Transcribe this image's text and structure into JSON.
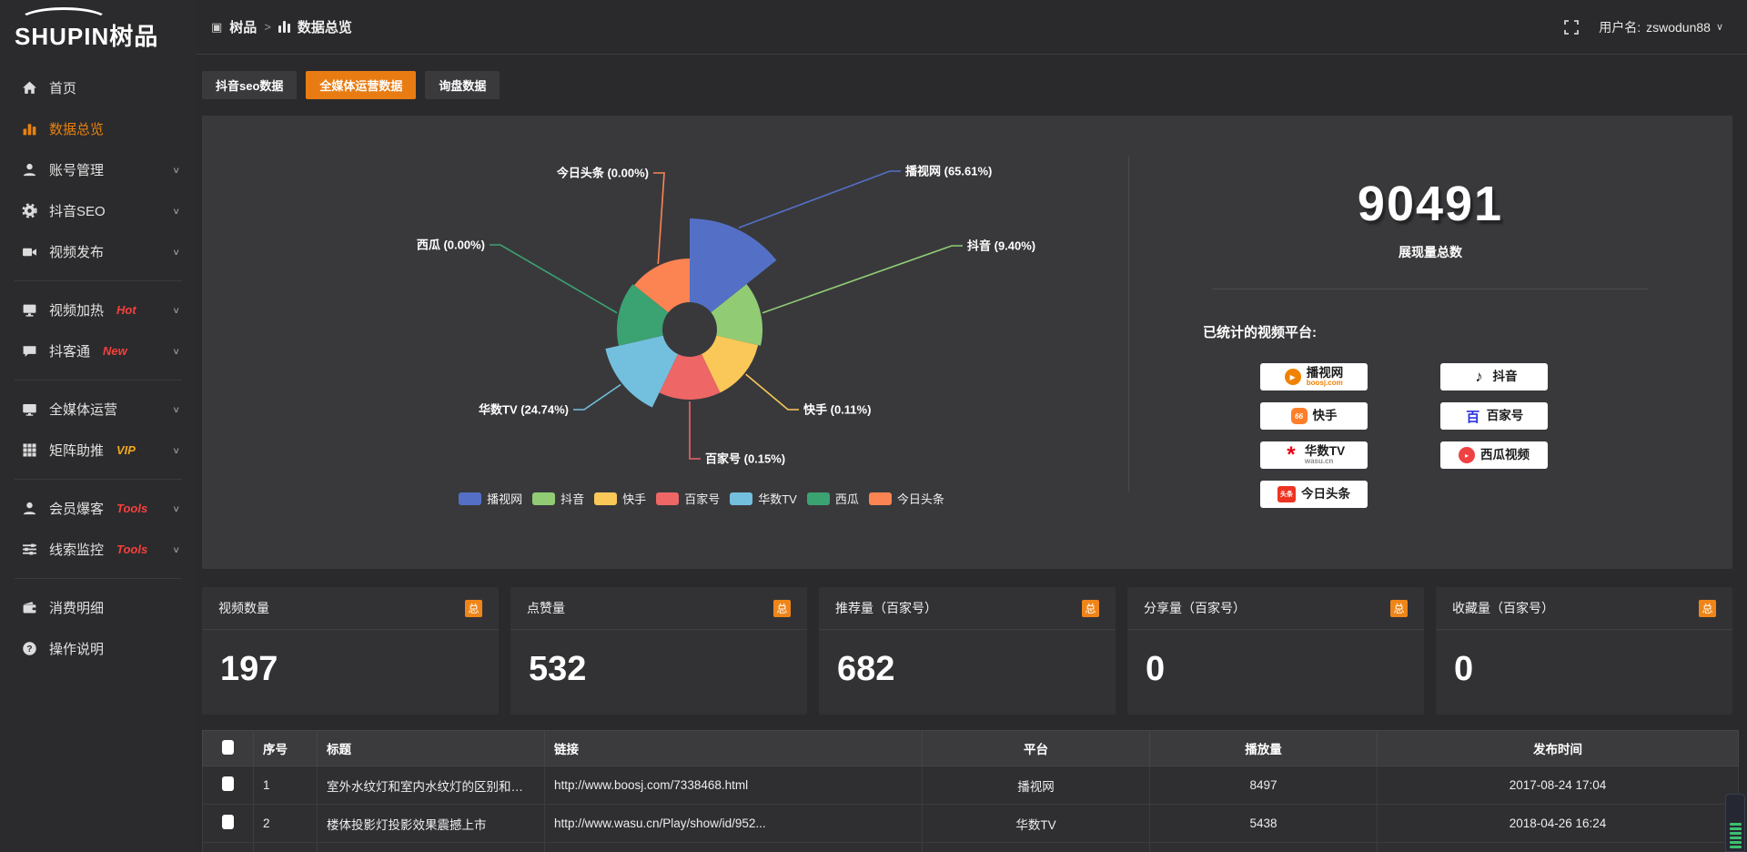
{
  "logo": {
    "en": "SHUPIN",
    "cn": "树品"
  },
  "topbar": {
    "breadcrumb": {
      "root": "树品",
      "separator": ">",
      "current": "数据总览"
    },
    "user_prefix": "用户名:",
    "user_name": "zswodun88"
  },
  "sidebar": {
    "items": [
      {
        "label": "首页",
        "icon": "home",
        "chevron": false,
        "active": false,
        "divider_after": false
      },
      {
        "label": "数据总览",
        "icon": "chart",
        "chevron": false,
        "active": true,
        "divider_after": false
      },
      {
        "label": "账号管理",
        "icon": "user",
        "chevron": true,
        "active": false,
        "divider_after": false
      },
      {
        "label": "抖音SEO",
        "icon": "gear",
        "chevron": true,
        "active": false,
        "divider_after": false
      },
      {
        "label": "视频发布",
        "icon": "publish",
        "chevron": true,
        "active": false,
        "divider_after": true
      },
      {
        "label": "视频加热",
        "icon": "heat",
        "badge": "Hot",
        "badge_color": "red",
        "chevron": true,
        "active": false,
        "divider_after": false
      },
      {
        "label": "抖客通",
        "icon": "chat",
        "badge": "New",
        "badge_color": "red",
        "chevron": true,
        "active": false,
        "divider_after": true
      },
      {
        "label": "全媒体运营",
        "icon": "monitor",
        "chevron": true,
        "active": false,
        "divider_after": false
      },
      {
        "label": "矩阵助推",
        "icon": "grid",
        "badge": "VIP",
        "badge_color": "gold",
        "chevron": true,
        "active": false,
        "divider_after": true
      },
      {
        "label": "会员爆客",
        "icon": "member",
        "badge": "Tools",
        "badge_color": "red",
        "chevron": true,
        "active": false,
        "divider_after": false
      },
      {
        "label": "线索监控",
        "icon": "sliders",
        "badge": "Tools",
        "badge_color": "red",
        "chevron": true,
        "active": false,
        "divider_after": true
      },
      {
        "label": "消费明细",
        "icon": "wallet",
        "chevron": false,
        "active": false,
        "divider_after": false
      },
      {
        "label": "操作说明",
        "icon": "help",
        "chevron": false,
        "active": false,
        "divider_after": false
      }
    ]
  },
  "tabs": [
    {
      "label": "抖音seo数据",
      "active": false
    },
    {
      "label": "全媒体运营数据",
      "active": true
    },
    {
      "label": "询盘数据",
      "active": false
    }
  ],
  "chart_data": {
    "type": "pie",
    "subtype": "nightingale-rose-donut",
    "title": "",
    "categories": [
      "播视网",
      "抖音",
      "快手",
      "百家号",
      "华数TV",
      "西瓜",
      "今日头条"
    ],
    "values": [
      65.61,
      9.4,
      0.11,
      0.15,
      24.74,
      0.0,
      0.0
    ],
    "unit": "percent",
    "labels": [
      "播视网 (65.61%)",
      "抖音 (9.40%)",
      "快手 (0.11%)",
      "百家号 (0.15%)",
      "华数TV (24.74%)",
      "西瓜 (0.00%)",
      "今日头条 (0.00%)"
    ],
    "colors": [
      "#5470c6",
      "#91cc75",
      "#fac858",
      "#ee6666",
      "#73c0de",
      "#3ba272",
      "#fc8452"
    ],
    "legend_position": "bottom",
    "render": {
      "inner_radius": 30,
      "radii": [
        122,
        80,
        77,
        77,
        95,
        80,
        78
      ],
      "elbows": [
        [
          220,
          -174
        ],
        [
          288,
          -92
        ],
        [
          108,
          88
        ],
        [
          0,
          142
        ],
        [
          -116,
          88
        ],
        [
          -208,
          -93
        ],
        [
          -28,
          -172
        ]
      ],
      "sides": [
        "right",
        "right",
        "right",
        "right",
        "left",
        "left",
        "left"
      ]
    }
  },
  "right_panel": {
    "total_value": "90491",
    "total_label": "展现量总数",
    "platforms_title": "已统计的视频平台:",
    "platforms": [
      {
        "name": "播视网",
        "sub": "boosj.com",
        "sub_color": "orange",
        "logo": "boosj",
        "glyph": "▶"
      },
      {
        "name": "抖音",
        "logo": "douyin",
        "glyph": "♪"
      },
      {
        "name": "快手",
        "logo": "kuaishou",
        "glyph": "66"
      },
      {
        "name": "百家号",
        "logo": "baijia",
        "glyph": "百"
      },
      {
        "name": "华数TV",
        "sub": "wasu.cn",
        "sub_color": "gray",
        "logo": "wasu",
        "glyph": "*"
      },
      {
        "name": "西瓜视频",
        "logo": "xigua",
        "glyph": "▸"
      },
      {
        "name": "今日头条",
        "logo": "toutiao",
        "glyph": "头条"
      }
    ]
  },
  "stat_cards": [
    {
      "title": "视频数量",
      "badge": "总",
      "value": "197"
    },
    {
      "title": "点赞量",
      "badge": "总",
      "value": "532"
    },
    {
      "title": "推荐量（百家号）",
      "badge": "总",
      "value": "682"
    },
    {
      "title": "分享量（百家号）",
      "badge": "总",
      "value": "0"
    },
    {
      "title": "收藏量（百家号）",
      "badge": "总",
      "value": "0"
    }
  ],
  "table": {
    "headers": [
      "序号",
      "标题",
      "链接",
      "平台",
      "播放量",
      "发布时间"
    ],
    "rows": [
      {
        "no": "1",
        "title": "室外水纹灯和室内水纹灯的区别和简介",
        "link": "http://www.boosj.com/7338468.html",
        "platform": "播视网",
        "plays": "8497",
        "time": "2017-08-24 17:04"
      },
      {
        "no": "2",
        "title": "楼体投影灯投影效果震撼上市",
        "link": "http://www.wasu.cn/Play/show/id/952...",
        "platform": "华数TV",
        "plays": "5438",
        "time": "2018-04-26 16:24"
      }
    ]
  },
  "colors": {
    "accent": "#e8820e",
    "tab_active": "#e87c12",
    "hot": "#f6403c",
    "vip": "#f0a818",
    "link": "#e2861c",
    "badge_total_bg": "#ef8518"
  }
}
